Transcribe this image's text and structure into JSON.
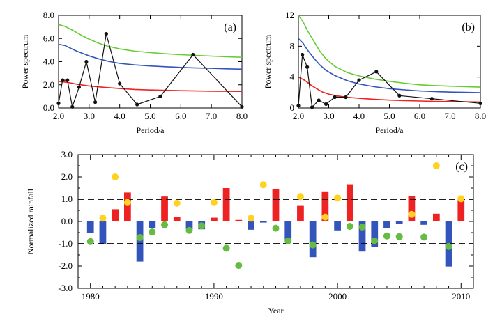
{
  "chart_data": [
    {
      "panel": "(a)",
      "type": "line",
      "xlabel": "Period/a",
      "ylabel": "Power spectrum",
      "xlim": [
        2.0,
        8.0
      ],
      "ylim": [
        0.0,
        8.0
      ],
      "xticks": [
        "2.0",
        "3.0",
        "4.0",
        "5.0",
        "6.0",
        "7.0",
        "8.0"
      ],
      "yticks": [
        "0.0",
        "2.0",
        "4.0",
        "6.0",
        "8.0"
      ],
      "series": [
        {
          "color": "#66cc33",
          "x": [
            2.0,
            2.2,
            2.4,
            2.6,
            2.8,
            3.0,
            3.3,
            3.6,
            4.0,
            4.5,
            5.0,
            5.5,
            6.0,
            6.5,
            7.0,
            7.5,
            8.0
          ],
          "y": [
            7.2,
            7.05,
            6.8,
            6.5,
            6.2,
            5.95,
            5.6,
            5.35,
            5.1,
            4.9,
            4.78,
            4.68,
            4.6,
            4.54,
            4.48,
            4.42,
            4.38
          ]
        },
        {
          "color": "#3355bb",
          "x": [
            2.0,
            2.2,
            2.4,
            2.6,
            2.8,
            3.0,
            3.3,
            3.6,
            4.0,
            4.5,
            5.0,
            5.5,
            6.0,
            6.5,
            7.0,
            7.5,
            8.0
          ],
          "y": [
            5.5,
            5.4,
            5.15,
            4.9,
            4.7,
            4.5,
            4.25,
            4.05,
            3.85,
            3.72,
            3.63,
            3.56,
            3.5,
            3.45,
            3.42,
            3.38,
            3.35
          ]
        },
        {
          "color": "#ee2222",
          "x": [
            2.0,
            2.3,
            2.6,
            3.0,
            3.5,
            4.0,
            4.5,
            5.0,
            5.5,
            6.0,
            6.5,
            7.0,
            7.5,
            8.0
          ],
          "y": [
            2.3,
            2.2,
            2.05,
            1.9,
            1.78,
            1.68,
            1.6,
            1.55,
            1.52,
            1.49,
            1.47,
            1.45,
            1.44,
            1.43
          ]
        },
        {
          "color": "#111111",
          "markers": true,
          "x": [
            2.0,
            2.13,
            2.29,
            2.45,
            2.67,
            2.91,
            3.2,
            3.56,
            4.0,
            4.57,
            5.33,
            6.4,
            8.0
          ],
          "y": [
            0.4,
            2.4,
            2.4,
            0.1,
            1.8,
            4.0,
            0.5,
            6.4,
            2.1,
            0.3,
            1.0,
            4.6,
            0.1
          ]
        }
      ]
    },
    {
      "panel": "(b)",
      "type": "line",
      "xlabel": "Period/a",
      "ylabel": "Power spectrum",
      "xlim": [
        2.0,
        8.0
      ],
      "ylim": [
        0,
        12
      ],
      "xticks": [
        "2.0",
        "3.0",
        "4.0",
        "5.0",
        "6.0",
        "7.0",
        "8.0"
      ],
      "yticks": [
        "0",
        "4",
        "8",
        "12"
      ],
      "series": [
        {
          "color": "#66cc33",
          "x": [
            2.0,
            2.15,
            2.3,
            2.5,
            2.7,
            2.9,
            3.2,
            3.6,
            4.0,
            4.5,
            5.0,
            5.5,
            6.0,
            6.5,
            7.0,
            7.5,
            8.0
          ],
          "y": [
            12.0,
            11.2,
            10.0,
            8.7,
            7.4,
            6.4,
            5.4,
            4.6,
            4.15,
            3.75,
            3.45,
            3.2,
            3.0,
            2.9,
            2.82,
            2.76,
            2.7
          ]
        },
        {
          "color": "#3355bb",
          "x": [
            2.0,
            2.15,
            2.3,
            2.5,
            2.7,
            2.9,
            3.2,
            3.6,
            4.0,
            4.5,
            5.0,
            5.5,
            6.0,
            6.5,
            7.0,
            7.5,
            8.0
          ],
          "y": [
            9.0,
            8.4,
            7.5,
            6.5,
            5.6,
            4.9,
            4.2,
            3.55,
            3.1,
            2.75,
            2.5,
            2.35,
            2.2,
            2.12,
            2.06,
            2.02,
            1.98
          ]
        },
        {
          "color": "#ee2222",
          "x": [
            2.0,
            2.2,
            2.4,
            2.6,
            2.8,
            3.0,
            3.3,
            3.6,
            4.0,
            4.5,
            5.0,
            5.5,
            6.0,
            6.5,
            7.0,
            7.5,
            8.0
          ],
          "y": [
            4.0,
            3.6,
            3.0,
            2.5,
            2.05,
            1.8,
            1.55,
            1.4,
            1.25,
            1.12,
            1.02,
            0.95,
            0.9,
            0.86,
            0.83,
            0.8,
            0.78
          ]
        },
        {
          "color": "#111111",
          "markers": true,
          "x": [
            2.0,
            2.13,
            2.29,
            2.45,
            2.67,
            2.91,
            3.2,
            3.56,
            4.0,
            4.57,
            5.33,
            6.4,
            8.0
          ],
          "y": [
            0.3,
            6.9,
            5.3,
            0.1,
            1.0,
            0.5,
            1.4,
            1.4,
            3.6,
            4.7,
            1.6,
            1.2,
            0.6
          ]
        }
      ]
    },
    {
      "panel": "(c)",
      "type": "bar",
      "xlabel": "Year",
      "ylabel": "Normalized rainfall",
      "xlim": [
        1979,
        2011
      ],
      "ylim": [
        -3.0,
        3.0
      ],
      "xticks": [
        "1980",
        "1990",
        "2000",
        "2010"
      ],
      "yticks": [
        "3.0",
        "2.0",
        "1.0",
        "0.0",
        "-1.0",
        "-2.0",
        "-3.0"
      ],
      "reference_lines": [
        1.0,
        -1.0
      ],
      "colors": {
        "positive": "#ee2222",
        "negative": "#3355bb",
        "yellow_dots": "#ffd21f",
        "green_dots": "#66bb44"
      },
      "years": [
        1980,
        1981,
        1982,
        1983,
        1984,
        1985,
        1986,
        1987,
        1988,
        1989,
        1990,
        1991,
        1992,
        1993,
        1994,
        1995,
        1996,
        1997,
        1998,
        1999,
        2000,
        2001,
        2002,
        2003,
        2004,
        2005,
        2006,
        2007,
        2008,
        2009,
        2010
      ],
      "values": [
        -0.5,
        -1.0,
        0.55,
        1.3,
        -1.8,
        -0.3,
        1.12,
        0.2,
        -0.35,
        -0.35,
        0.17,
        1.5,
        0.07,
        -0.37,
        -0.05,
        1.47,
        -0.8,
        0.7,
        -1.6,
        1.35,
        -0.4,
        1.67,
        -1.35,
        -1.15,
        -0.3,
        -0.12,
        1.15,
        -0.15,
        0.35,
        -2.02,
        1.0
      ],
      "yellow_dots": [
        {
          "year": 1981,
          "value": 0.15
        },
        {
          "year": 1982,
          "value": 2.0
        },
        {
          "year": 1983,
          "value": 0.85
        },
        {
          "year": 1987,
          "value": 0.82
        },
        {
          "year": 1990,
          "value": 0.85
        },
        {
          "year": 1993,
          "value": 0.15
        },
        {
          "year": 1994,
          "value": 1.65
        },
        {
          "year": 1997,
          "value": 1.12
        },
        {
          "year": 1999,
          "value": 0.2
        },
        {
          "year": 2000,
          "value": 1.05
        },
        {
          "year": 2006,
          "value": 0.32
        },
        {
          "year": 2008,
          "value": 2.5
        },
        {
          "year": 2010,
          "value": 1.02
        }
      ],
      "green_dots": [
        {
          "year": 1980,
          "value": -0.9
        },
        {
          "year": 1984,
          "value": -0.72
        },
        {
          "year": 1985,
          "value": -0.47
        },
        {
          "year": 1986,
          "value": -0.15
        },
        {
          "year": 1988,
          "value": -0.4
        },
        {
          "year": 1989,
          "value": -0.2
        },
        {
          "year": 1991,
          "value": -1.2
        },
        {
          "year": 1992,
          "value": -1.97
        },
        {
          "year": 1995,
          "value": -0.3
        },
        {
          "year": 1996,
          "value": -0.87
        },
        {
          "year": 1998,
          "value": -1.05
        },
        {
          "year": 2001,
          "value": -0.22
        },
        {
          "year": 2002,
          "value": -0.25
        },
        {
          "year": 2003,
          "value": -0.87
        },
        {
          "year": 2004,
          "value": -0.65
        },
        {
          "year": 2005,
          "value": -0.68
        },
        {
          "year": 2007,
          "value": -0.7
        },
        {
          "year": 2009,
          "value": -1.12
        }
      ]
    }
  ]
}
